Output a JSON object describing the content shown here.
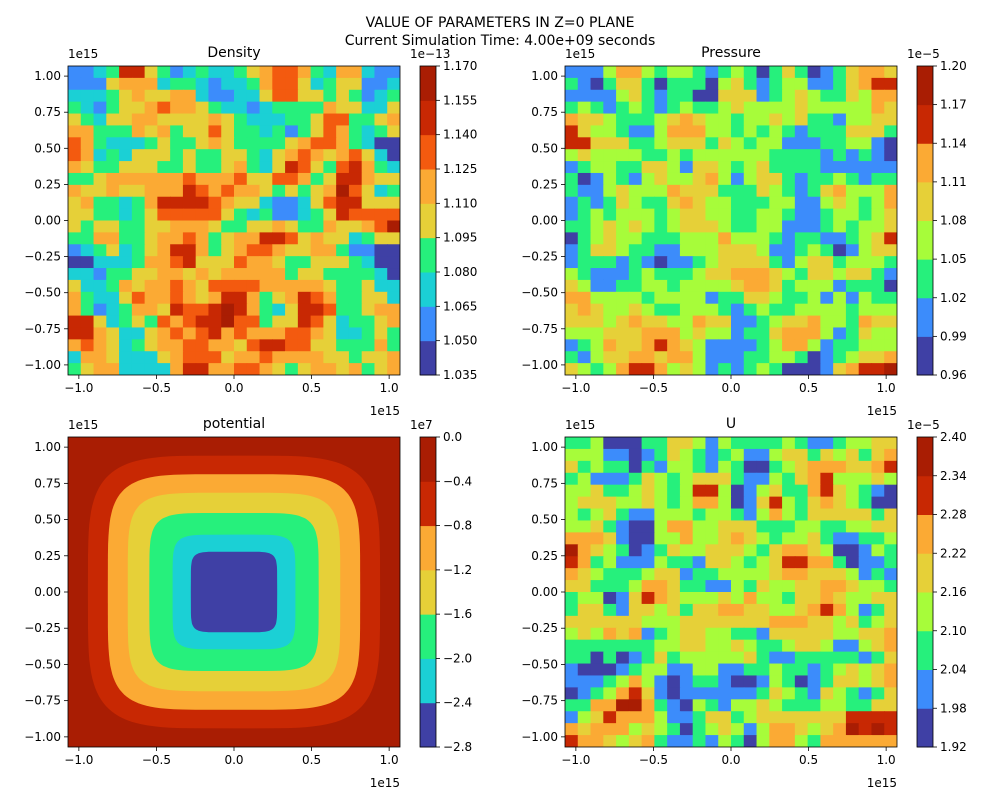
{
  "figure": {
    "title": "VALUE OF PARAMETERS IN Z=0 PLANE",
    "subtitle": "Current Simulation Time: 4.00e+09 seconds"
  },
  "colormap": [
    "#3f40a5",
    "#3c8cfb",
    "#1bd0d5",
    "#26f07c",
    "#a7fc3a",
    "#e6d038",
    "#fbaa34",
    "#f35a0f",
    "#c82803",
    "#a91d03"
  ],
  "chart_data": [
    {
      "type": "heatmap",
      "title": "Density",
      "xlim": [
        -1.07,
        1.07
      ],
      "ylim": [
        -1.07,
        1.07
      ],
      "x_ticks": [
        "−1.0",
        "−0.5",
        "0.0",
        "0.5",
        "1.0"
      ],
      "y_ticks": [
        "−1.00",
        "−0.75",
        "−0.50",
        "−0.25",
        "0.00",
        "0.25",
        "0.50",
        "0.75",
        "1.00"
      ],
      "x_offset": "1e15",
      "y_offset": "1e15",
      "colorbar": {
        "levels": [
          1.035,
          1.05,
          1.065,
          1.08,
          1.095,
          1.11,
          1.125,
          1.14,
          1.155,
          1.17
        ],
        "labels": [
          "1.035",
          "1.050",
          "1.065",
          "1.080",
          "1.095",
          "1.110",
          "1.125",
          "1.140",
          "1.155",
          "1.170"
        ],
        "offset": "1e−13"
      },
      "field": "noise",
      "seed": 11,
      "base_level": 4
    },
    {
      "type": "heatmap",
      "title": "Pressure",
      "xlim": [
        -1.07,
        1.07
      ],
      "ylim": [
        -1.07,
        1.07
      ],
      "x_ticks": [
        "−1.0",
        "−0.5",
        "0.0",
        "0.5",
        "1.0"
      ],
      "y_ticks": [
        "−1.00",
        "−0.75",
        "−0.50",
        "−0.25",
        "0.00",
        "0.25",
        "0.50",
        "0.75",
        "1.00"
      ],
      "x_offset": "1e15",
      "y_offset": "1e15",
      "colorbar": {
        "levels": [
          0.96,
          0.99,
          1.02,
          1.05,
          1.08,
          1.11,
          1.14,
          1.17,
          1.2
        ],
        "labels": [
          "0.96",
          "0.99",
          "1.02",
          "1.05",
          "1.08",
          "1.11",
          "1.14",
          "1.17",
          "1.20"
        ],
        "offset": "1e−5"
      },
      "field": "noise",
      "seed": 23,
      "base_level": 3
    },
    {
      "type": "heatmap",
      "title": "potential",
      "xlim": [
        -1.07,
        1.07
      ],
      "ylim": [
        -1.07,
        1.07
      ],
      "x_ticks": [
        "−1.0",
        "−0.5",
        "0.0",
        "0.5",
        "1.0"
      ],
      "y_ticks": [
        "−1.00",
        "−0.75",
        "−0.50",
        "−0.25",
        "0.00",
        "0.25",
        "0.50",
        "0.75",
        "1.00"
      ],
      "x_offset": "1e15",
      "y_offset": "1e15",
      "colorbar": {
        "levels": [
          -2.8,
          -2.4,
          -2.0,
          -1.6,
          -1.2,
          -0.8,
          -0.4,
          0.0
        ],
        "labels": [
          "−2.8",
          "−2.4",
          "−2.0",
          "−1.6",
          "−1.2",
          "−0.8",
          "−0.4",
          "0.0"
        ],
        "offset": "1e7"
      },
      "field": "potential"
    },
    {
      "type": "heatmap",
      "title": "U",
      "xlim": [
        -1.07,
        1.07
      ],
      "ylim": [
        -1.07,
        1.07
      ],
      "x_ticks": [
        "−1.0",
        "−0.5",
        "0.0",
        "0.5",
        "1.0"
      ],
      "y_ticks": [
        "−1.00",
        "−0.75",
        "−0.50",
        "−0.25",
        "0.00",
        "0.25",
        "0.50",
        "0.75",
        "1.00"
      ],
      "x_offset": "1e15",
      "y_offset": "1e15",
      "colorbar": {
        "levels": [
          1.92,
          1.98,
          2.04,
          2.1,
          2.16,
          2.22,
          2.28,
          2.34,
          2.4
        ],
        "labels": [
          "1.92",
          "1.98",
          "2.04",
          "2.10",
          "2.16",
          "2.22",
          "2.28",
          "2.34",
          "2.40"
        ],
        "offset": "1e−5"
      },
      "field": "noise",
      "seed": 37,
      "base_level": 3
    }
  ]
}
